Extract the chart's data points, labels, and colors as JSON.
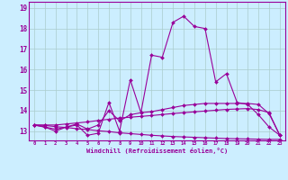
{
  "xlabel": "Windchill (Refroidissement éolien,°C)",
  "background_color": "#cceeff",
  "line_color": "#990099",
  "grid_color": "#aacccc",
  "xlim": [
    -0.5,
    23.5
  ],
  "ylim": [
    12.55,
    19.3
  ],
  "yticks": [
    13,
    14,
    15,
    16,
    17,
    18,
    19
  ],
  "xticks": [
    0,
    1,
    2,
    3,
    4,
    5,
    6,
    7,
    8,
    9,
    10,
    11,
    12,
    13,
    14,
    15,
    16,
    17,
    18,
    19,
    20,
    21,
    22,
    23
  ],
  "series": [
    [
      13.3,
      13.2,
      13.0,
      13.2,
      13.3,
      12.8,
      12.9,
      14.4,
      13.0,
      15.5,
      13.9,
      16.7,
      16.6,
      18.3,
      18.6,
      18.1,
      18.0,
      15.4,
      15.8,
      14.4,
      14.3,
      13.8,
      13.2,
      12.8
    ],
    [
      13.3,
      13.2,
      13.1,
      13.2,
      13.35,
      13.1,
      13.3,
      14.0,
      13.5,
      13.8,
      13.9,
      13.95,
      14.05,
      14.15,
      14.25,
      14.3,
      14.35,
      14.35,
      14.35,
      14.35,
      14.35,
      14.3,
      13.85,
      12.8
    ],
    [
      13.3,
      13.3,
      13.3,
      13.35,
      13.4,
      13.45,
      13.52,
      13.58,
      13.64,
      13.68,
      13.72,
      13.76,
      13.81,
      13.86,
      13.9,
      13.94,
      13.98,
      14.02,
      14.06,
      14.08,
      14.1,
      14.05,
      13.9,
      12.8
    ],
    [
      13.3,
      13.28,
      13.22,
      13.18,
      13.12,
      13.08,
      13.02,
      12.98,
      12.92,
      12.88,
      12.84,
      12.8,
      12.77,
      12.74,
      12.72,
      12.7,
      12.68,
      12.66,
      12.64,
      12.63,
      12.62,
      12.61,
      12.6,
      12.6
    ]
  ]
}
